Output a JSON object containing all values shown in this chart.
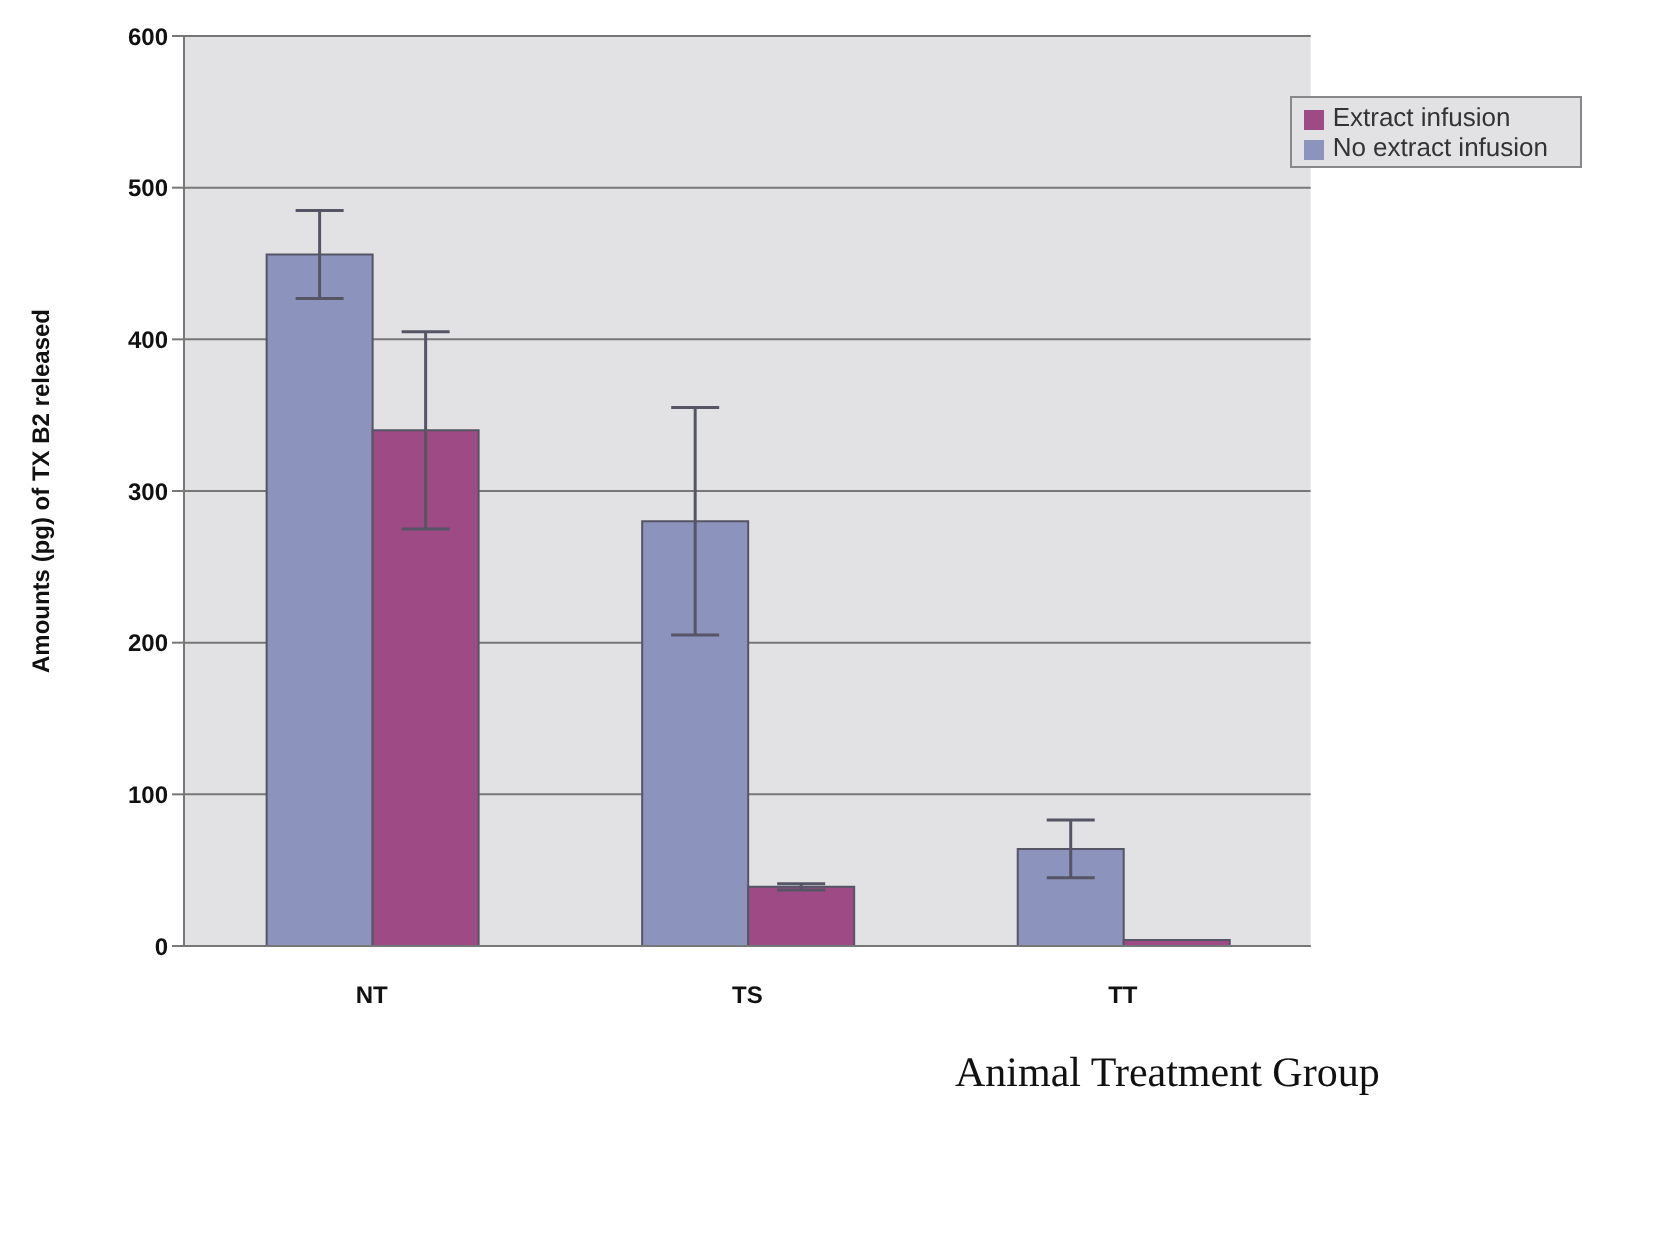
{
  "chart_data": {
    "type": "bar",
    "xlabel": "Animal Treatment Group",
    "ylabel": "Amounts (pg) of TX B2 released",
    "categories": [
      "NT",
      "TS",
      "TT"
    ],
    "series": [
      {
        "name": "No extract infusion",
        "color": "#8c93bd",
        "values": [
          456,
          280,
          64
        ],
        "errors": [
          29,
          75,
          19
        ]
      },
      {
        "name": "Extract infusion",
        "color": "#9e4a84",
        "values": [
          340,
          39,
          4
        ],
        "errors": [
          65,
          2,
          null
        ]
      }
    ],
    "ylim": [
      0,
      600
    ],
    "yticks": [
      0,
      100,
      200,
      300,
      400,
      500,
      600
    ],
    "grid": "y",
    "legend": "top right"
  }
}
